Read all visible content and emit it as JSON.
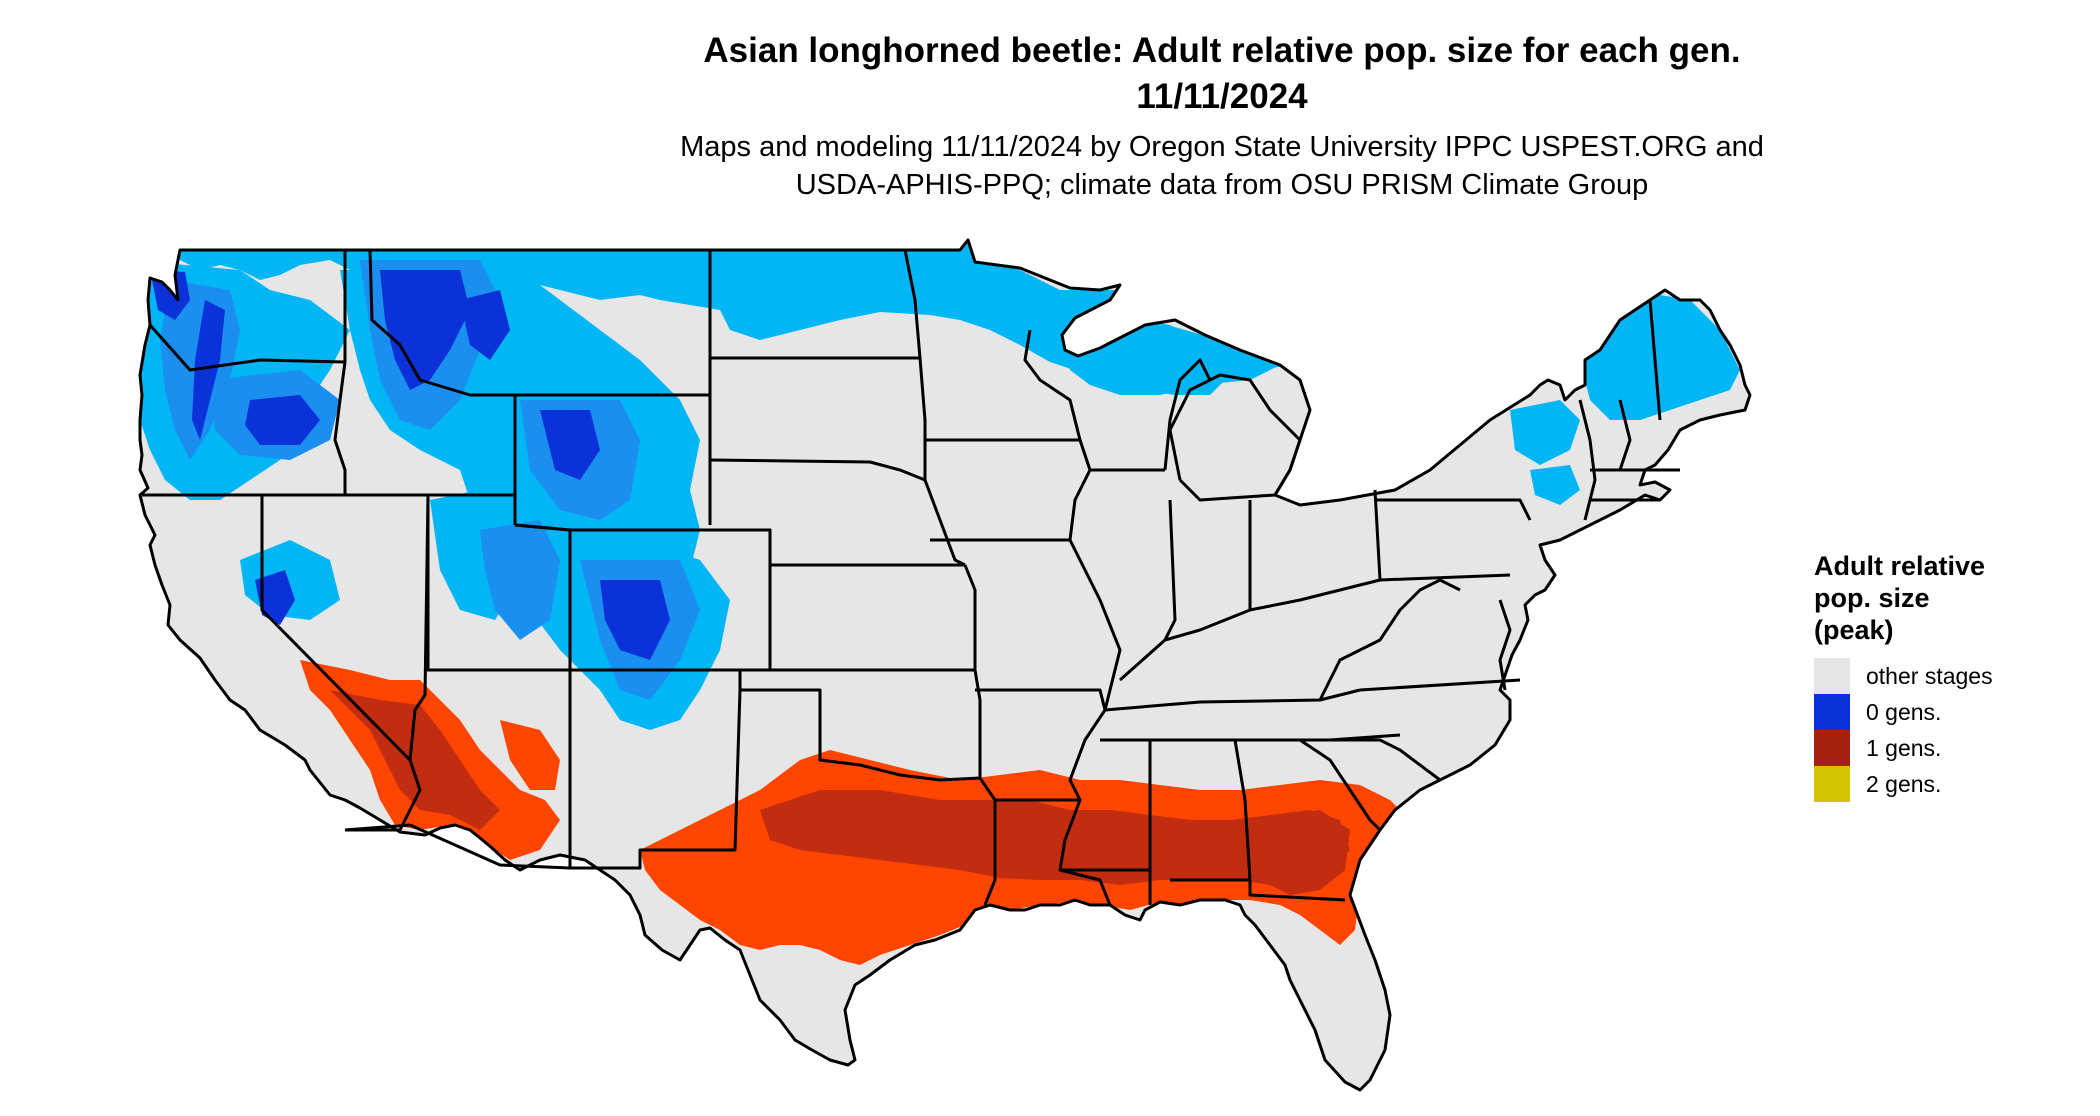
{
  "title": {
    "line1": "Asian longhorned beetle: Adult relative pop. size for each gen.",
    "line2": "11/11/2024"
  },
  "subtitle": {
    "line1": "Maps and modeling 11/11/2024 by Oregon State University IPPC USPEST.ORG and",
    "line2": "USDA-APHIS-PPQ; climate data from OSU PRISM Climate Group"
  },
  "legend": {
    "title": "Adult relative\npop. size\n(peak)",
    "items": [
      {
        "label": "other stages",
        "color": "#e5e5e5"
      },
      {
        "label": "0 gens.",
        "color": "#0a32d8"
      },
      {
        "label": "1 gens.",
        "color": "#a5220f"
      },
      {
        "label": "2 gens.",
        "color": "#d6c300"
      }
    ]
  },
  "map_colors": {
    "land": "#e6e6e6",
    "light_blue": "#00b6f5",
    "mid_blue": "#1b8ff0",
    "dark_blue": "#0a32d8",
    "orange": "#ff4500",
    "dark_red": "#c22c10",
    "border": "#000000"
  }
}
